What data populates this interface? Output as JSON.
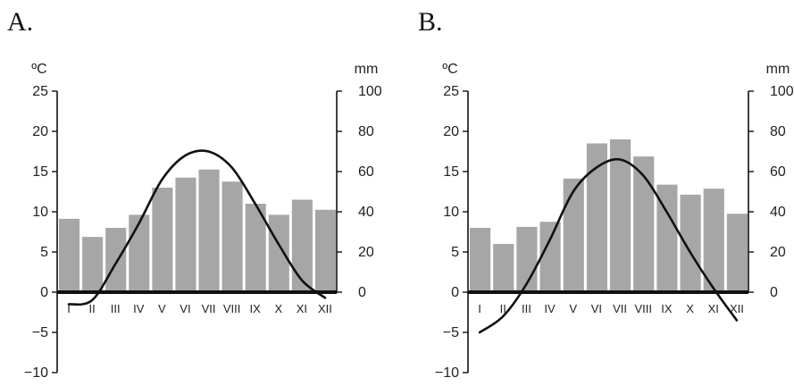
{
  "chart_data": [
    {
      "type": "bar",
      "panel_label": "A.",
      "categories": [
        "I",
        "II",
        "III",
        "IV",
        "V",
        "VI",
        "VII",
        "VIII",
        "IX",
        "X",
        "XI",
        "XII"
      ],
      "temp_unit": "ºC",
      "precip_unit": "mm",
      "temp_ylim": [
        -10,
        25
      ],
      "temp_ticks": [
        -10,
        -5,
        0,
        5,
        10,
        15,
        20,
        25
      ],
      "temp_tick_labels": [
        "−10",
        "−5",
        "0",
        "5",
        "10",
        "15",
        "20",
        "25"
      ],
      "precip_ylim": [
        -40,
        100
      ],
      "precip_ticks": [
        0,
        20,
        40,
        60,
        80,
        100
      ],
      "precip_values": [
        36.5,
        27.5,
        32,
        38.5,
        52,
        57,
        61,
        55,
        44,
        38.5,
        46,
        41
      ],
      "temp_values": [
        -1.5,
        -1,
        3.5,
        8.5,
        14,
        17,
        17.5,
        15.5,
        11,
        6,
        1.5,
        -0.7
      ],
      "bar_color": "#a6a6a6",
      "line_color": "#111111"
    },
    {
      "type": "bar",
      "panel_label": "B.",
      "categories": [
        "I",
        "II",
        "III",
        "IV",
        "V",
        "VI",
        "VII",
        "VIII",
        "IX",
        "X",
        "XI",
        "XII"
      ],
      "temp_unit": "ºC",
      "precip_unit": "mm",
      "temp_ylim": [
        -10,
        25
      ],
      "temp_ticks": [
        -10,
        -5,
        0,
        5,
        10,
        15,
        20,
        25
      ],
      "temp_tick_labels": [
        "−10",
        "−5",
        "0",
        "5",
        "10",
        "15",
        "20",
        "25"
      ],
      "precip_ylim": [
        -40,
        100
      ],
      "precip_ticks": [
        0,
        20,
        40,
        60,
        80,
        100
      ],
      "precip_values": [
        32,
        24,
        32.5,
        35,
        56.5,
        74,
        76,
        67.5,
        53.5,
        48.5,
        51.5,
        39
      ],
      "temp_values": [
        -5,
        -3,
        1,
        6.5,
        12.5,
        15.5,
        16.5,
        14.5,
        10,
        5,
        0.5,
        -3.5
      ],
      "bar_color": "#a6a6a6",
      "line_color": "#111111"
    }
  ]
}
